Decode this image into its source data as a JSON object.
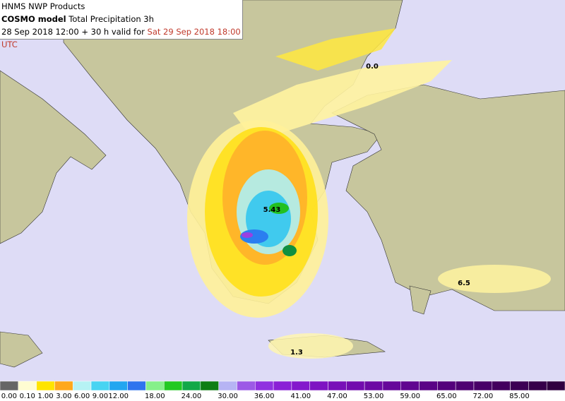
{
  "header": {
    "org": "HNMS NWP Products",
    "model": "COSMO model",
    "product": "Total Precipitation 3h",
    "run": "28 Sep 2018 12:00 + 30 h valid for",
    "valid": "Sat 29 Sep 2018 18:00 UTC"
  },
  "map_labels": [
    "0.0",
    "5.43",
    "6.5",
    "1.3"
  ],
  "legend": {
    "colors": [
      "#666666",
      "#fffcd2",
      "#ffe400",
      "#ffa81c",
      "#b6f2f4",
      "#48d4f2",
      "#22a6f0",
      "#2f74ee",
      "#86f08a",
      "#22c922",
      "#12a848",
      "#0e7e14",
      "#b6b4f4",
      "#9c5ae6",
      "#9032e0",
      "#8a20d6",
      "#8418cc",
      "#7e14c2",
      "#7810b8",
      "#720cae",
      "#6c0aa4",
      "#66089a",
      "#600690",
      "#5a0486",
      "#54027c",
      "#4e0272",
      "#480068",
      "#42005e",
      "#3c0054",
      "#36004a",
      "#300040"
    ],
    "labels": [
      "0.00",
      "0.10",
      "1.00",
      "3.00",
      "6.00",
      "9.00",
      "12.00",
      "18.00",
      "24.00",
      "30.00",
      "36.00",
      "41.00",
      "47.00",
      "53.00",
      "59.00",
      "65.00",
      "72.00",
      "85.00"
    ]
  }
}
